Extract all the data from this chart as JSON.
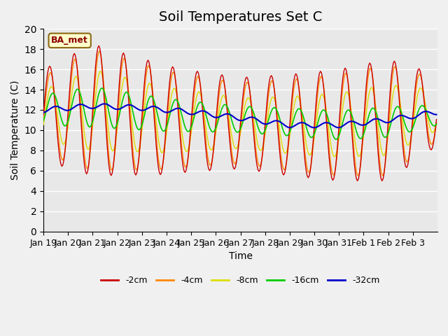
{
  "title": "Soil Temperatures Set C",
  "xlabel": "Time",
  "ylabel": "Soil Temperature (C)",
  "ylim": [
    0,
    20
  ],
  "yticks": [
    0,
    2,
    4,
    6,
    8,
    10,
    12,
    14,
    16,
    18,
    20
  ],
  "x_labels": [
    "Jan 19",
    "Jan 20",
    "Jan 21",
    "Jan 22",
    "Jan 23",
    "Jan 24",
    "Jan 25",
    "Jan 26",
    "Jan 27",
    "Jan 28",
    "Jan 29",
    "Jan 30",
    "Jan 31",
    "Feb 1",
    "Feb 2",
    "Feb 3"
  ],
  "line_colors": {
    "-2cm": "#cc0000",
    "-4cm": "#ff8800",
    "-8cm": "#dddd00",
    "-16cm": "#00cc00",
    "-32cm": "#0000cc"
  },
  "legend_colors": [
    "#cc0000",
    "#ff8800",
    "#dddd00",
    "#00cc00",
    "#0000cc"
  ],
  "legend_labels": [
    "-2cm",
    "-4cm",
    "-8cm",
    "-16cm",
    "-32cm"
  ],
  "annotation_text": "BA_met",
  "bg_color": "#e8e8e8",
  "title_fontsize": 14,
  "axis_fontsize": 10,
  "label_fontsize": 9
}
